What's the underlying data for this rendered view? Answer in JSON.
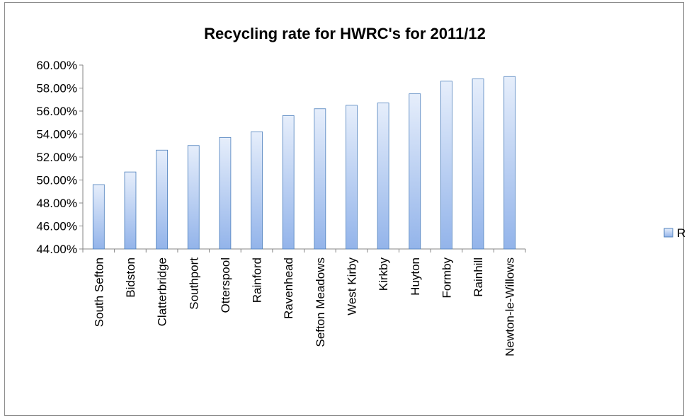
{
  "chart_data": {
    "type": "bar",
    "title": "Recycling rate for HWRC's  for 2011/12",
    "xlabel": "",
    "ylabel": "",
    "categories": [
      "South Sefton",
      "Bidston",
      "Clatterbridge",
      "Southport",
      "Otterspool",
      "Rainford",
      "Ravenhead",
      "Sefton Meadows",
      "West Kirby",
      "Kirkby",
      "Huyton",
      "Formby",
      "Rainhill",
      "Newton-le-Willows"
    ],
    "series": [
      {
        "name": "Recycling rate",
        "values": [
          49.6,
          50.7,
          52.6,
          53.0,
          53.7,
          54.2,
          55.6,
          56.2,
          56.5,
          56.7,
          57.5,
          58.6,
          58.8,
          59.0
        ]
      }
    ],
    "ylim": [
      44,
      60
    ],
    "yticks": [
      "44.00%",
      "46.00%",
      "48.00%",
      "50.00%",
      "52.00%",
      "54.00%",
      "56.00%",
      "58.00%",
      "60.00%"
    ],
    "grid": false,
    "legend": "right",
    "colors": {
      "bar_top": "#e6eefb",
      "bar_bottom": "#93b4ea",
      "bar_stroke": "#4f81bd",
      "axis": "#868686"
    }
  }
}
